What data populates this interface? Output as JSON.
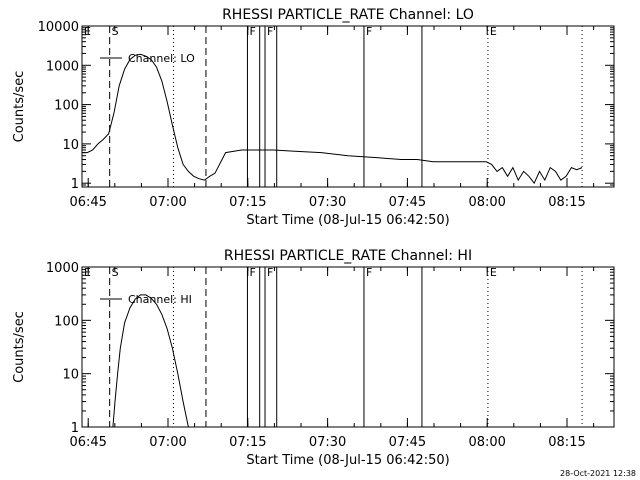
{
  "footer_date": "28-Oct-2021 12:38",
  "chart_data": [
    {
      "type": "line",
      "title": "RHESSI PARTICLE_RATE Channel: LO",
      "xlabel": "Start Time (08-Jul-15 06:42:50)",
      "ylabel": "Counts/sec",
      "y_scale": "log",
      "x_unit": "minutes after 06:42:50",
      "xlim": [
        0,
        100
      ],
      "ylim": [
        0.8,
        10000
      ],
      "x_tick_labels": [
        "06:45",
        "07:00",
        "07:15",
        "07:30",
        "07:45",
        "08:00",
        "08:15"
      ],
      "y_tick_labels": [
        "1",
        "10",
        "100",
        "1000",
        "10000"
      ],
      "legend": "Channel: LO",
      "markers": [
        {
          "label": "E",
          "t": 0.0,
          "style": "solid"
        },
        {
          "label": "S",
          "t": 5.2,
          "style": "dashed"
        },
        {
          "label": "",
          "t": 17.2,
          "style": "dotted"
        },
        {
          "label": "",
          "t": 23.3,
          "style": "dashed"
        },
        {
          "label": "F",
          "t": 31.1,
          "style": "solid"
        },
        {
          "label": "",
          "t": 33.4,
          "style": "solid"
        },
        {
          "label": "F",
          "t": 34.4,
          "style": "solid"
        },
        {
          "label": "",
          "t": 36.6,
          "style": "solid"
        },
        {
          "label": "F",
          "t": 53.0,
          "style": "solid"
        },
        {
          "label": "",
          "t": 63.9,
          "style": "solid"
        },
        {
          "label": "E",
          "t": 76.3,
          "style": "dotted"
        },
        {
          "label": "",
          "t": 94.0,
          "style": "dotted"
        }
      ],
      "x": [
        0,
        1,
        2,
        3,
        4,
        5,
        6,
        7,
        8,
        9,
        10,
        11,
        12,
        13,
        14,
        15,
        16,
        17,
        18,
        19,
        20,
        21,
        22,
        23,
        24,
        25,
        27,
        30,
        33,
        36,
        40,
        45,
        50,
        55,
        60,
        63,
        66,
        70,
        76,
        77,
        78,
        79,
        80,
        81,
        82,
        83,
        84,
        85,
        86,
        87,
        88,
        89,
        90,
        91,
        92,
        93,
        94
      ],
      "values": [
        6,
        6,
        7,
        10,
        13,
        18,
        60,
        300,
        800,
        1400,
        1800,
        1900,
        1700,
        1400,
        900,
        400,
        120,
        30,
        8,
        3,
        2,
        1.5,
        1.3,
        1.2,
        1.5,
        1.8,
        6,
        7,
        7,
        7,
        6.5,
        6,
        5,
        4.5,
        4,
        4,
        3.5,
        3.5,
        3.5,
        3,
        2,
        2.5,
        1.5,
        2.5,
        1.2,
        2,
        1.5,
        1,
        2,
        1.2,
        2.5,
        2,
        1.2,
        1.5,
        2.5,
        2.2,
        2.5
      ]
    },
    {
      "type": "line",
      "title": "RHESSI PARTICLE_RATE Channel: HI",
      "xlabel": "Start Time (08-Jul-15 06:42:50)",
      "ylabel": "Counts/sec",
      "y_scale": "log",
      "x_unit": "minutes after 06:42:50",
      "xlim": [
        0,
        100
      ],
      "ylim": [
        1,
        1000
      ],
      "x_tick_labels": [
        "06:45",
        "07:00",
        "07:15",
        "07:30",
        "07:45",
        "08:00",
        "08:15"
      ],
      "y_tick_labels": [
        "1",
        "10",
        "100",
        "1000"
      ],
      "legend": "Channel: HI",
      "markers": [
        {
          "label": "E",
          "t": 0.0,
          "style": "solid"
        },
        {
          "label": "S",
          "t": 5.2,
          "style": "dashed"
        },
        {
          "label": "",
          "t": 17.2,
          "style": "dotted"
        },
        {
          "label": "",
          "t": 23.3,
          "style": "dashed"
        },
        {
          "label": "F",
          "t": 31.1,
          "style": "solid"
        },
        {
          "label": "",
          "t": 33.4,
          "style": "solid"
        },
        {
          "label": "F",
          "t": 34.4,
          "style": "solid"
        },
        {
          "label": "",
          "t": 36.6,
          "style": "solid"
        },
        {
          "label": "F",
          "t": 53.0,
          "style": "solid"
        },
        {
          "label": "",
          "t": 63.9,
          "style": "solid"
        },
        {
          "label": "E",
          "t": 76.3,
          "style": "dotted"
        },
        {
          "label": "",
          "t": 94.0,
          "style": "dotted"
        }
      ],
      "x": [
        5.8,
        6.2,
        6.7,
        7.2,
        8,
        9,
        10,
        11,
        12,
        13,
        14,
        15,
        16,
        17,
        18,
        19,
        20
      ],
      "values": [
        1,
        3,
        10,
        30,
        90,
        170,
        250,
        300,
        300,
        260,
        200,
        130,
        70,
        30,
        10,
        3,
        1
      ]
    }
  ]
}
